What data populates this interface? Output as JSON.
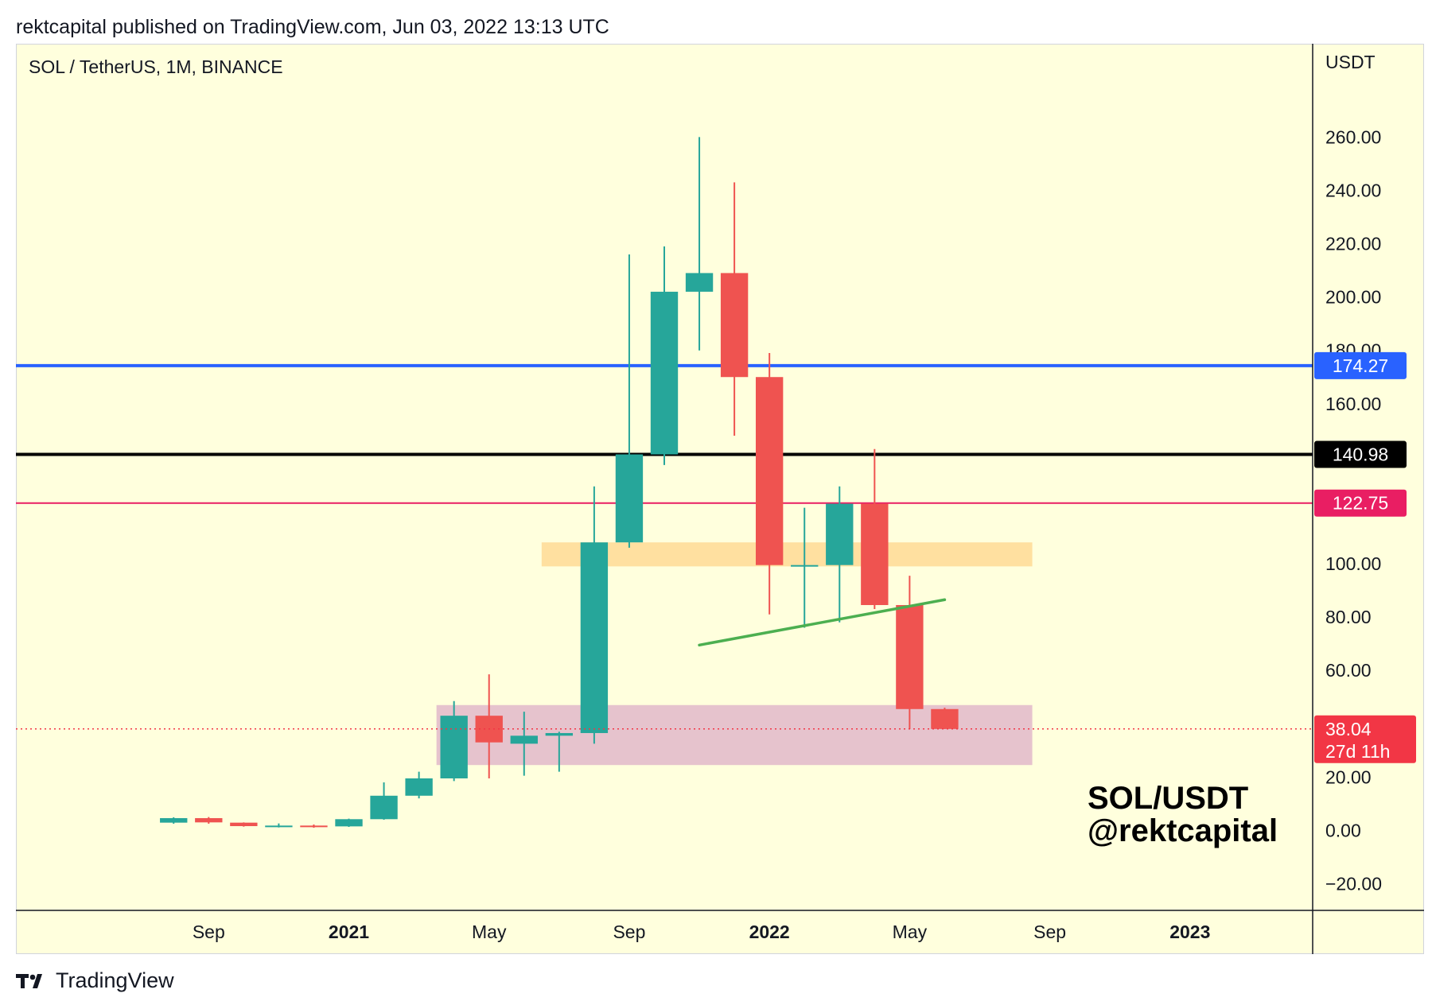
{
  "header": {
    "published_line": "rektcapital published on TradingView.com, Jun 03, 2022 13:13 UTC"
  },
  "footer": {
    "brand": "TradingView",
    "logo_icon": "tradingview-logo-icon"
  },
  "colors": {
    "background": "#ffffdd",
    "up": "#26a69a",
    "down": "#ef5350",
    "blue_line": "#2962ff",
    "black_line": "#000000",
    "pink_line": "#e91e63",
    "orange_zone": "#ffe0a0",
    "pink_zone": "#e6c3cd",
    "trend_line": "#4caf50",
    "current_price": "#f23645"
  },
  "chart_data": {
    "type": "candlestick",
    "symbol_label": "SOL / TetherUS, 1M, BINANCE",
    "watermark": [
      "SOL/USDT",
      "@rektcapital"
    ],
    "y_axis": {
      "unit": "USDT",
      "range": [
        -30,
        295
      ],
      "ticks": [
        -20,
        0,
        20,
        60,
        80,
        100,
        160,
        180,
        200,
        220,
        240,
        260
      ],
      "tick_labels": [
        "−20.00",
        "0.00",
        "20.00",
        "60.00",
        "80.00",
        "100.00",
        "160.00",
        "180.00",
        "200.00",
        "220.00",
        "240.00",
        "260.00"
      ]
    },
    "x_axis": {
      "start": "2020-04",
      "end": "2023-04",
      "ticks": [
        {
          "month": "2020-09",
          "label": "Sep",
          "bold": false
        },
        {
          "month": "2021-01",
          "label": "2021",
          "bold": true
        },
        {
          "month": "2021-05",
          "label": "May",
          "bold": false
        },
        {
          "month": "2021-09",
          "label": "Sep",
          "bold": false
        },
        {
          "month": "2022-01",
          "label": "2022",
          "bold": true
        },
        {
          "month": "2022-05",
          "label": "May",
          "bold": false
        },
        {
          "month": "2022-09",
          "label": "Sep",
          "bold": false
        },
        {
          "month": "2023-01",
          "label": "2023",
          "bold": true
        }
      ]
    },
    "candles": [
      {
        "date": "2020-08",
        "open": 2.9,
        "high": 4.9,
        "low": 2.5,
        "close": 4.6
      },
      {
        "date": "2020-09",
        "open": 4.6,
        "high": 5.0,
        "low": 2.5,
        "close": 3.0
      },
      {
        "date": "2020-10",
        "open": 2.9,
        "high": 3.0,
        "low": 1.4,
        "close": 1.6
      },
      {
        "date": "2020-11",
        "open": 1.6,
        "high": 2.6,
        "low": 1.1,
        "close": 1.8
      },
      {
        "date": "2020-12",
        "open": 1.8,
        "high": 2.2,
        "low": 1.0,
        "close": 1.4
      },
      {
        "date": "2021-01",
        "open": 1.5,
        "high": 4.4,
        "low": 1.3,
        "close": 4.2
      },
      {
        "date": "2021-02",
        "open": 4.2,
        "high": 18.0,
        "low": 4.0,
        "close": 13.0
      },
      {
        "date": "2021-03",
        "open": 13.0,
        "high": 22.0,
        "low": 12.0,
        "close": 19.5
      },
      {
        "date": "2021-04",
        "open": 19.5,
        "high": 48.5,
        "low": 18.5,
        "close": 43.0
      },
      {
        "date": "2021-05",
        "open": 43.0,
        "high": 58.5,
        "low": 19.5,
        "close": 33.0
      },
      {
        "date": "2021-06",
        "open": 32.5,
        "high": 44.5,
        "low": 20.5,
        "close": 35.5
      },
      {
        "date": "2021-07",
        "open": 35.5,
        "high": 37.0,
        "low": 22.0,
        "close": 36.5
      },
      {
        "date": "2021-08",
        "open": 36.5,
        "high": 129.0,
        "low": 32.5,
        "close": 108.0
      },
      {
        "date": "2021-09",
        "open": 108.0,
        "high": 216.0,
        "low": 106.0,
        "close": 141.0
      },
      {
        "date": "2021-10",
        "open": 141.0,
        "high": 219.0,
        "low": 137.0,
        "close": 202.0
      },
      {
        "date": "2021-11",
        "open": 202.0,
        "high": 260.0,
        "low": 180.0,
        "close": 209.0
      },
      {
        "date": "2021-12",
        "open": 209.0,
        "high": 243.0,
        "low": 148.0,
        "close": 170.0
      },
      {
        "date": "2022-01",
        "open": 170.0,
        "high": 179.0,
        "low": 81.0,
        "close": 99.5
      },
      {
        "date": "2022-02",
        "open": 99.5,
        "high": 121.0,
        "low": 76.0,
        "close": 99.5
      },
      {
        "date": "2022-03",
        "open": 99.5,
        "high": 129.0,
        "low": 78.0,
        "close": 122.5
      },
      {
        "date": "2022-04",
        "open": 122.5,
        "high": 143.0,
        "low": 83.0,
        "close": 84.5
      },
      {
        "date": "2022-05",
        "open": 84.5,
        "high": 95.5,
        "low": 38.0,
        "close": 45.5
      },
      {
        "date": "2022-06",
        "open": 45.5,
        "high": 46.0,
        "low": 38.0,
        "close": 38.04
      }
    ],
    "horizontal_levels": [
      {
        "price": 174.27,
        "label": "174.27",
        "color": "#2962ff",
        "width": 4,
        "text_color": "#ffffff"
      },
      {
        "price": 140.98,
        "label": "140.98",
        "color": "#000000",
        "width": 4,
        "text_color": "#ffffff"
      },
      {
        "price": 122.75,
        "label": "122.75",
        "color": "#e91e63",
        "width": 2,
        "text_color": "#ffffff"
      }
    ],
    "zones": [
      {
        "name": "orange",
        "from": "2021-07",
        "to": "2022-09",
        "low": 99.0,
        "high": 108.0,
        "color": "#ffe0a0"
      },
      {
        "name": "pink",
        "from": "2021-04",
        "to": "2022-09",
        "low": 24.5,
        "high": 47.0,
        "color": "#e6c3cd"
      }
    ],
    "trend_line": {
      "from_date": "2021-11",
      "from_price": 69.5,
      "to_date": "2022-06",
      "to_price": 86.5,
      "color": "#4caf50"
    },
    "current_price": {
      "price": 38.04,
      "label": "38.04",
      "countdown": "27d 11h",
      "color": "#f23645"
    }
  }
}
